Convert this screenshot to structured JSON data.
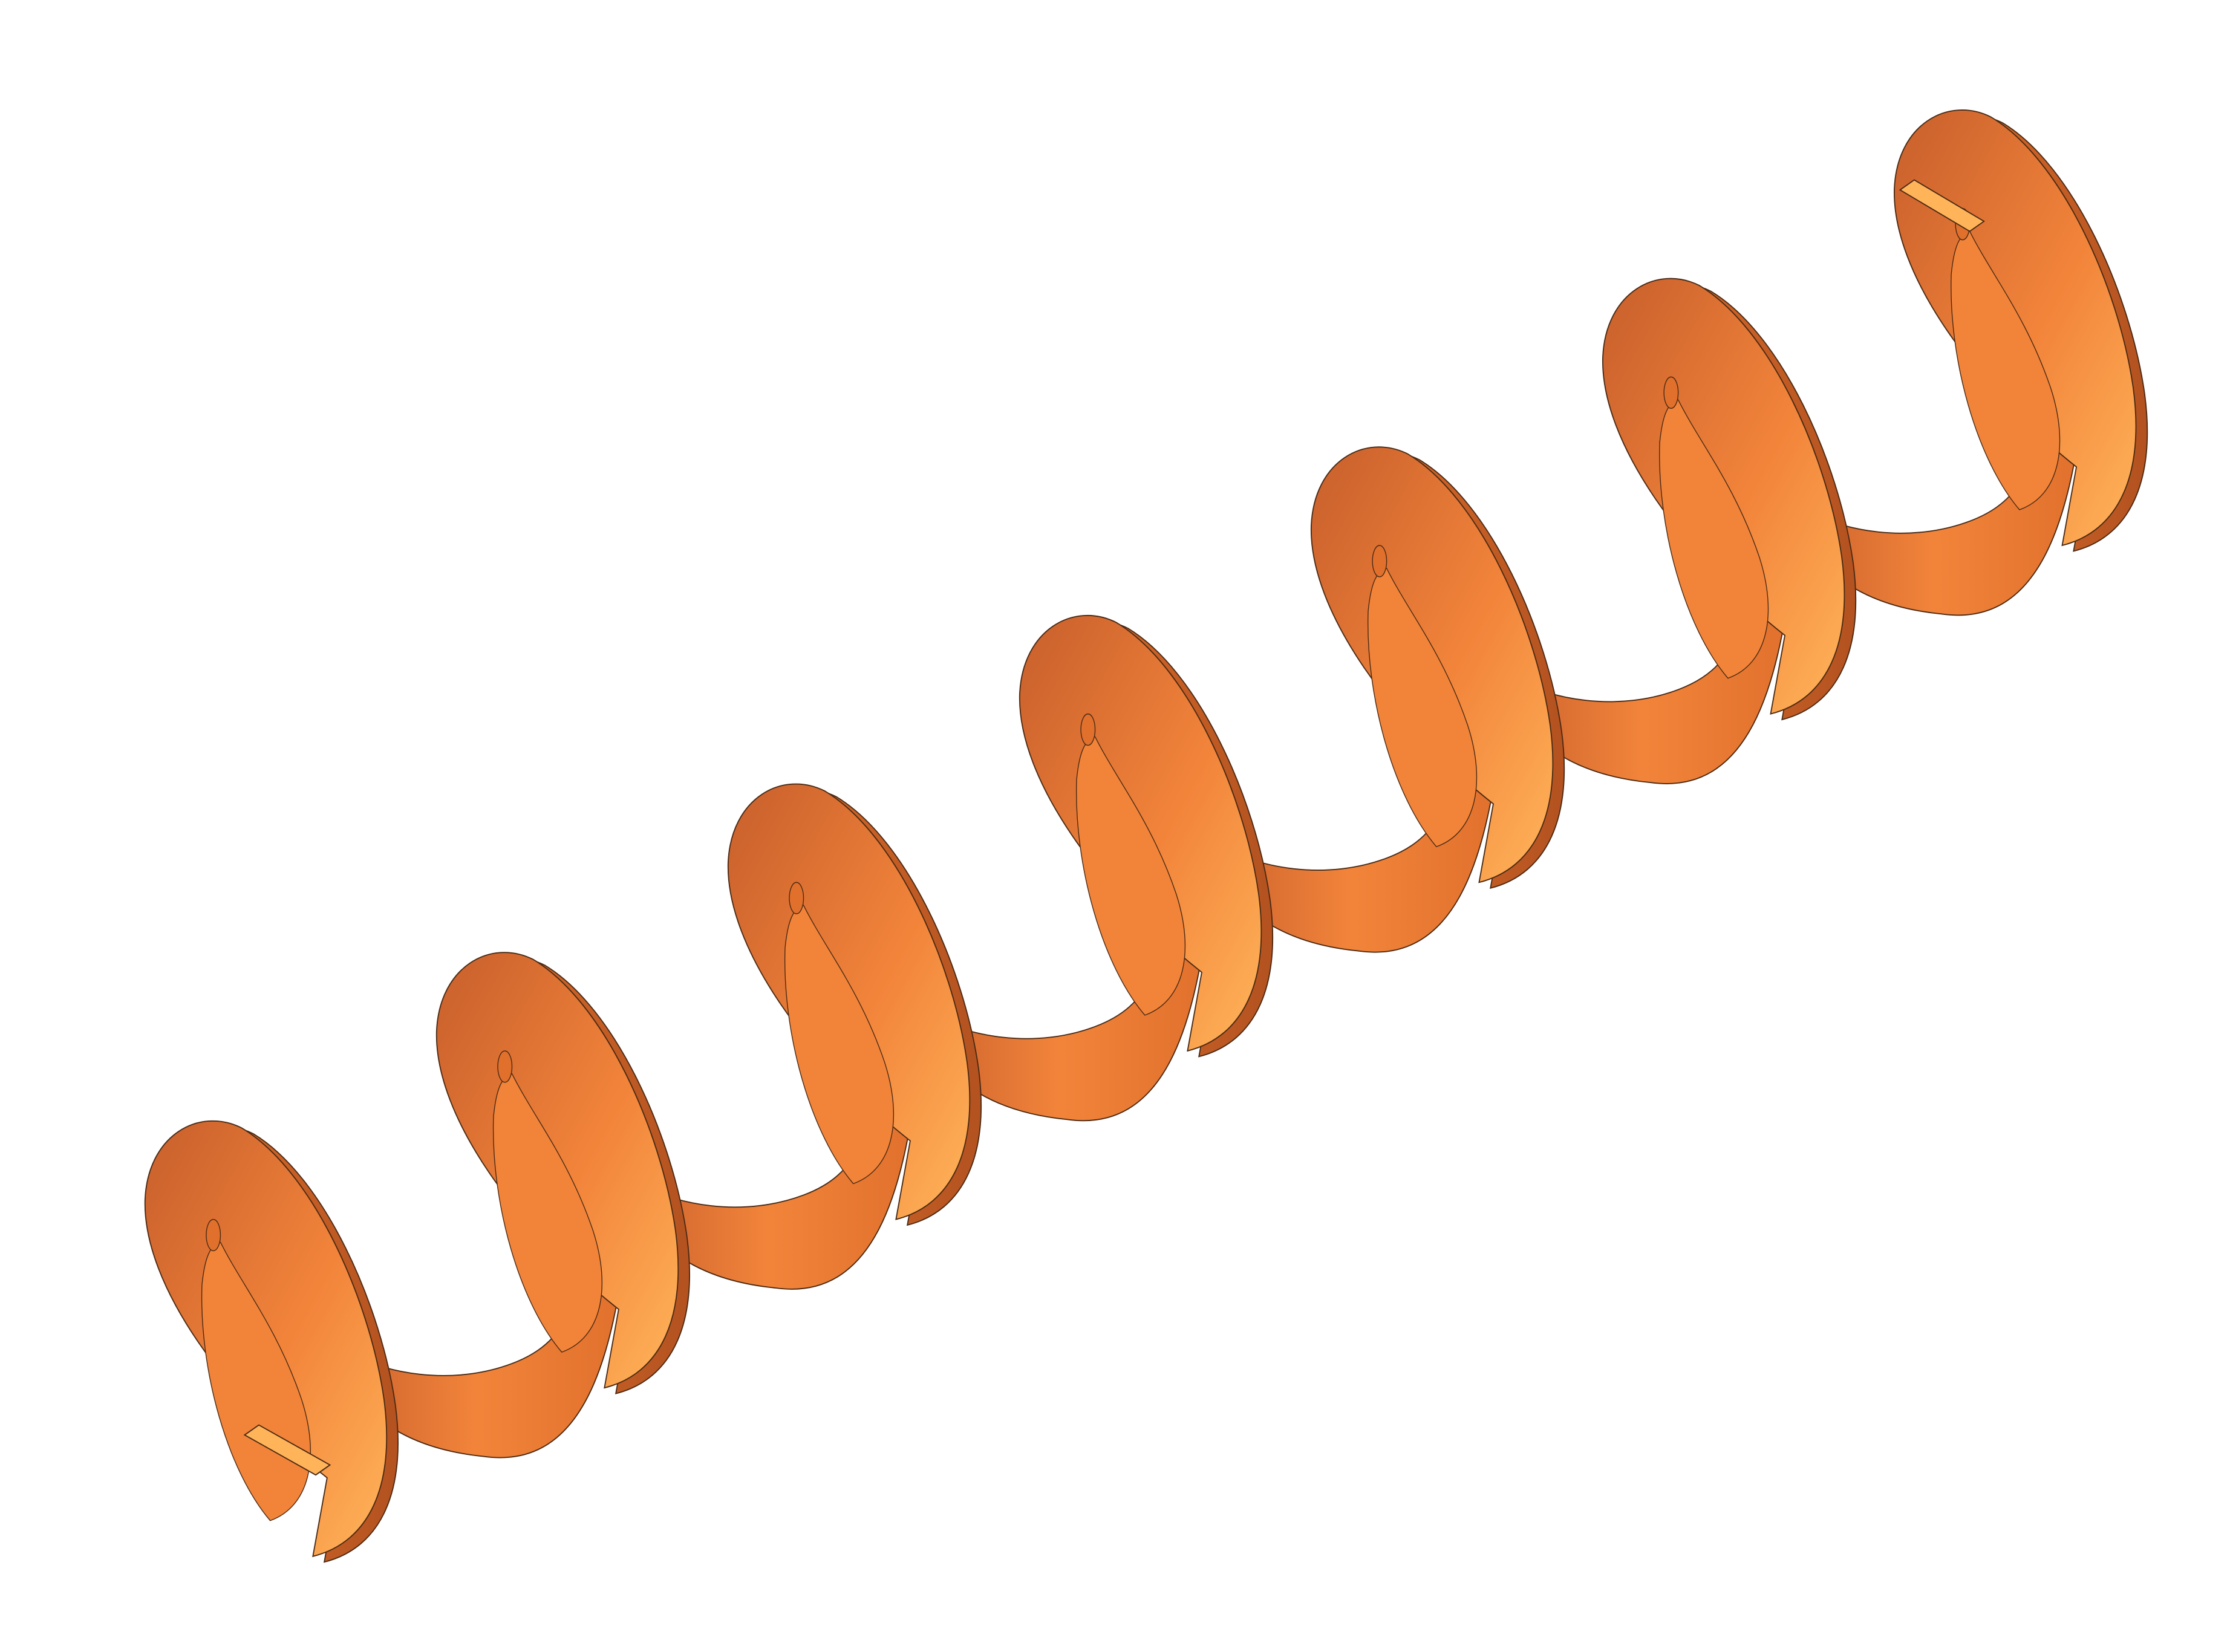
{
  "scene": {
    "subject": "helical-spring-ribbon",
    "coil_count": 7,
    "colors": {
      "background": "#ffffff",
      "ribbon_light": "#ffb45a",
      "ribbon_mid": "#f2843a",
      "ribbon_dark": "#c85f2c",
      "edge_light": "#e0702c",
      "edge_dark": "#9c4218",
      "outline": "#4a2a14"
    }
  }
}
